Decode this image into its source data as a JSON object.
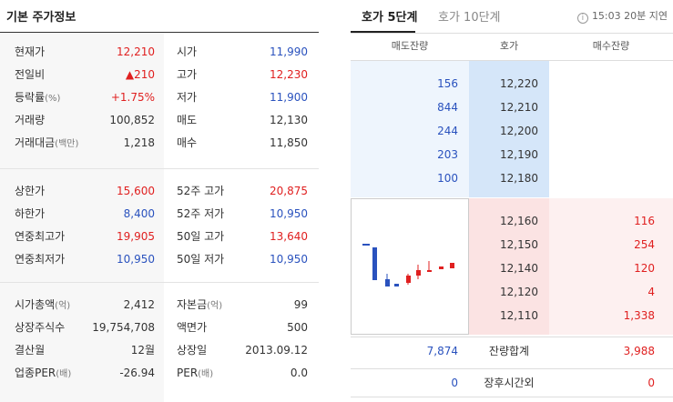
{
  "left": {
    "title": "기본 주가정보",
    "section1": [
      {
        "label": "현재가",
        "label_small": "",
        "value": "12,210",
        "value_color": "red",
        "rlabel": "시가",
        "rlabel_small": "",
        "rvalue": "11,990",
        "rvalue_color": "blue"
      },
      {
        "label": "전일비",
        "label_small": "",
        "value": "▲210",
        "value_color": "red",
        "rlabel": "고가",
        "rlabel_small": "",
        "rvalue": "12,230",
        "rvalue_color": "red"
      },
      {
        "label": "등락률",
        "label_small": "(%)",
        "value": "+1.75%",
        "value_color": "red",
        "rlabel": "저가",
        "rlabel_small": "",
        "rvalue": "11,900",
        "rvalue_color": "blue"
      },
      {
        "label": "거래량",
        "label_small": "",
        "value": "100,852",
        "value_color": "dark",
        "rlabel": "매도",
        "rlabel_small": "",
        "rvalue": "12,130",
        "rvalue_color": "dark"
      },
      {
        "label": "거래대금",
        "label_small": "(백만)",
        "value": "1,218",
        "value_color": "dark",
        "rlabel": "매수",
        "rlabel_small": "",
        "rvalue": "11,850",
        "rvalue_color": "dark"
      }
    ],
    "section2": [
      {
        "label": "상한가",
        "label_small": "",
        "value": "15,600",
        "value_color": "red",
        "rlabel": "52주 고가",
        "rlabel_small": "",
        "rvalue": "20,875",
        "rvalue_color": "red"
      },
      {
        "label": "하한가",
        "label_small": "",
        "value": "8,400",
        "value_color": "blue",
        "rlabel": "52주 저가",
        "rlabel_small": "",
        "rvalue": "10,950",
        "rvalue_color": "blue"
      },
      {
        "label": "연중최고가",
        "label_small": "",
        "value": "19,905",
        "value_color": "red",
        "rlabel": "50일 고가",
        "rlabel_small": "",
        "rvalue": "13,640",
        "rvalue_color": "red"
      },
      {
        "label": "연중최저가",
        "label_small": "",
        "value": "10,950",
        "value_color": "blue",
        "rlabel": "50일 저가",
        "rlabel_small": "",
        "rvalue": "10,950",
        "rvalue_color": "blue"
      }
    ],
    "section3": [
      {
        "label": "시가총액",
        "label_small": "(억)",
        "value": "2,412",
        "value_color": "dark",
        "rlabel": "자본금",
        "rlabel_small": "(억)",
        "rvalue": "99",
        "rvalue_color": "dark"
      },
      {
        "label": "상장주식수",
        "label_small": "",
        "value": "19,754,708",
        "value_color": "dark",
        "rlabel": "액면가",
        "rlabel_small": "",
        "rvalue": "500",
        "rvalue_color": "dark"
      },
      {
        "label": "결산월",
        "label_small": "",
        "value": "12월",
        "value_color": "dark",
        "rlabel": "상장일",
        "rlabel_small": "",
        "rvalue": "2013.09.12",
        "rvalue_color": "dark"
      },
      {
        "label": "업종PER",
        "label_small": "(배)",
        "value": "-26.94",
        "value_color": "dark",
        "rlabel": "PER",
        "rlabel_small": "(배)",
        "rvalue": "0.0",
        "rvalue_color": "dark"
      }
    ]
  },
  "right": {
    "tabs": [
      {
        "label": "호가 5단계",
        "active": true
      },
      {
        "label": "호가 10단계",
        "active": false
      }
    ],
    "time_text": "15:03 20분 지연",
    "info_icon": "info-icon",
    "headers": {
      "ask": "매도잔량",
      "price": "호가",
      "bid": "매수잔량"
    },
    "asks": [
      {
        "volume": "156",
        "price": "12,220"
      },
      {
        "volume": "844",
        "price": "12,210"
      },
      {
        "volume": "244",
        "price": "12,200"
      },
      {
        "volume": "203",
        "price": "12,190"
      },
      {
        "volume": "100",
        "price": "12,180"
      }
    ],
    "bids": [
      {
        "price": "12,160",
        "volume": "116"
      },
      {
        "price": "12,150",
        "volume": "254"
      },
      {
        "price": "12,140",
        "volume": "120"
      },
      {
        "price": "12,120",
        "volume": "4"
      },
      {
        "price": "12,110",
        "volume": "1,338"
      }
    ],
    "totals": {
      "ask": "7,874",
      "label": "잔량합계",
      "bid": "3,988"
    },
    "after_hours": {
      "ask": "0",
      "label": "장후시간외",
      "bid": "0"
    },
    "colors": {
      "up": "#e02020",
      "down": "#2a52be",
      "ask_bg": "#d5e6f9",
      "bid_bg": "#fbe3e3"
    }
  }
}
